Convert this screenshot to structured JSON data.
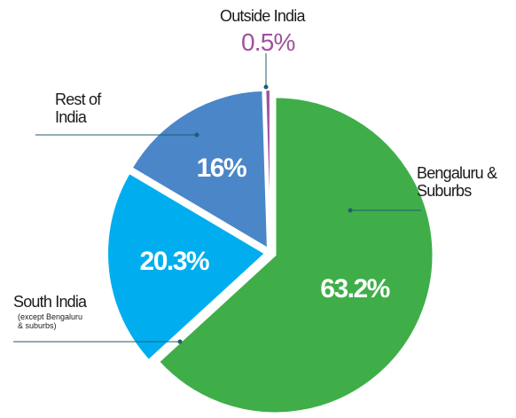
{
  "chart_data": {
    "type": "pie",
    "categories": [
      "Bengaluru & Suburbs",
      "South India",
      "Rest of India",
      "Outside India"
    ],
    "values": [
      63.2,
      20.3,
      16,
      0.5
    ],
    "value_labels": [
      "63.2%",
      "20.3%",
      "16%",
      "0.5%"
    ],
    "colors": [
      "#3fae49",
      "#00aeef",
      "#4a86c8",
      "#a0509e"
    ],
    "annotations": [
      {
        "text": "(except Bengaluru & suburbs)"
      }
    ]
  }
}
